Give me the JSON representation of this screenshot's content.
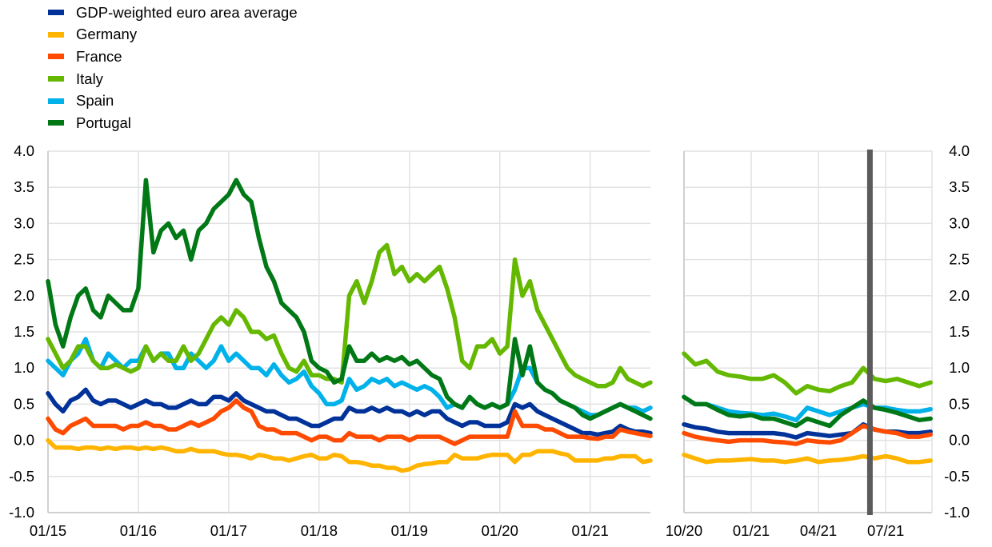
{
  "chart_data": [
    {
      "type": "line",
      "title": "",
      "xlabel": "",
      "ylabel": "",
      "ylim": [
        -1.0,
        4.0
      ],
      "yticks": [
        "4.0",
        "3.5",
        "3.0",
        "2.5",
        "2.0",
        "1.5",
        "1.0",
        "0.5",
        "0.0",
        "-0.5",
        "-1.0"
      ],
      "xticks": [
        {
          "date": "2015-01",
          "label": "01/15"
        },
        {
          "date": "2016-01",
          "label": "01/16"
        },
        {
          "date": "2017-01",
          "label": "01/17"
        },
        {
          "date": "2018-01",
          "label": "01/18"
        },
        {
          "date": "2019-01",
          "label": "01/19"
        },
        {
          "date": "2020-01",
          "label": "01/20"
        },
        {
          "date": "2021-01",
          "label": "01/21"
        }
      ],
      "xlim": [
        "2015-01",
        "2021-09"
      ],
      "grid": true,
      "y_axis_side": "left",
      "start": "2015-01",
      "step": "monthly",
      "series": [
        {
          "name": "Germany",
          "color": "#ffb400",
          "values": [
            0.0,
            -0.1,
            -0.1,
            -0.1,
            -0.12,
            -0.1,
            -0.1,
            -0.12,
            -0.1,
            -0.12,
            -0.1,
            -0.1,
            -0.12,
            -0.1,
            -0.12,
            -0.1,
            -0.12,
            -0.15,
            -0.15,
            -0.12,
            -0.15,
            -0.15,
            -0.15,
            -0.18,
            -0.2,
            -0.2,
            -0.22,
            -0.25,
            -0.2,
            -0.22,
            -0.25,
            -0.25,
            -0.28,
            -0.25,
            -0.22,
            -0.2,
            -0.25,
            -0.25,
            -0.2,
            -0.22,
            -0.3,
            -0.3,
            -0.32,
            -0.35,
            -0.35,
            -0.38,
            -0.38,
            -0.42,
            -0.4,
            -0.35,
            -0.33,
            -0.32,
            -0.3,
            -0.3,
            -0.2,
            -0.25,
            -0.25,
            -0.25,
            -0.22,
            -0.2,
            -0.2,
            -0.2,
            -0.3,
            -0.2,
            -0.2,
            -0.15,
            -0.15,
            -0.15,
            -0.18,
            -0.2,
            -0.28,
            -0.28,
            -0.28,
            -0.28,
            -0.25,
            -0.25,
            -0.22,
            -0.22,
            -0.22,
            -0.3,
            -0.28
          ]
        },
        {
          "name": "Spain",
          "color": "#00b1ea",
          "values": [
            1.1,
            1.0,
            0.9,
            1.1,
            1.2,
            1.4,
            1.1,
            1.0,
            1.2,
            1.1,
            1.0,
            1.1,
            1.1,
            1.3,
            1.1,
            1.2,
            1.2,
            1.0,
            1.0,
            1.2,
            1.1,
            1.0,
            1.1,
            1.3,
            1.1,
            1.2,
            1.1,
            1.0,
            1.0,
            0.9,
            1.05,
            0.9,
            0.8,
            0.85,
            0.95,
            0.75,
            0.65,
            0.5,
            0.5,
            0.55,
            0.85,
            0.7,
            0.75,
            0.85,
            0.8,
            0.85,
            0.75,
            0.8,
            0.75,
            0.7,
            0.75,
            0.7,
            0.6,
            0.45,
            0.5,
            0.45,
            0.6,
            0.5,
            0.45,
            0.5,
            0.45,
            0.5,
            0.7,
            1.0,
            1.0,
            0.8,
            0.7,
            0.65,
            0.55,
            0.5,
            0.45,
            0.4,
            0.35,
            0.35,
            0.4,
            0.45,
            0.5,
            0.45,
            0.45,
            0.4,
            0.45
          ]
        },
        {
          "name": "Italy",
          "color": "#65b800",
          "values": [
            1.4,
            1.2,
            1.0,
            1.1,
            1.3,
            1.3,
            1.1,
            1.0,
            1.0,
            1.05,
            1.0,
            0.95,
            1.0,
            1.3,
            1.1,
            1.2,
            1.1,
            1.1,
            1.3,
            1.1,
            1.2,
            1.4,
            1.6,
            1.7,
            1.6,
            1.8,
            1.7,
            1.5,
            1.5,
            1.4,
            1.45,
            1.2,
            1.0,
            0.95,
            1.1,
            0.9,
            0.9,
            0.85,
            0.85,
            0.8,
            2.0,
            2.2,
            1.9,
            2.2,
            2.6,
            2.7,
            2.3,
            2.4,
            2.2,
            2.3,
            2.2,
            2.3,
            2.4,
            2.1,
            1.7,
            1.1,
            1.0,
            1.3,
            1.3,
            1.4,
            1.2,
            1.3,
            2.5,
            2.0,
            2.2,
            1.8,
            1.6,
            1.4,
            1.2,
            1.0,
            0.9,
            0.85,
            0.8,
            0.75,
            0.75,
            0.8,
            1.0,
            0.85,
            0.8,
            0.75,
            0.8
          ]
        },
        {
          "name": "Portugal",
          "color": "#007816",
          "values": [
            2.2,
            1.6,
            1.3,
            1.7,
            2.0,
            2.1,
            1.8,
            1.7,
            2.0,
            1.9,
            1.8,
            1.8,
            2.1,
            3.6,
            2.6,
            2.9,
            3.0,
            2.8,
            2.9,
            2.5,
            2.9,
            3.0,
            3.2,
            3.3,
            3.4,
            3.6,
            3.4,
            3.3,
            2.8,
            2.4,
            2.2,
            1.9,
            1.8,
            1.7,
            1.5,
            1.1,
            1.0,
            0.95,
            0.8,
            0.85,
            1.3,
            1.1,
            1.1,
            1.2,
            1.1,
            1.15,
            1.1,
            1.15,
            1.05,
            1.1,
            1.0,
            0.9,
            0.85,
            0.6,
            0.5,
            0.45,
            0.6,
            0.5,
            0.45,
            0.5,
            0.45,
            0.5,
            1.4,
            0.9,
            1.3,
            0.8,
            0.7,
            0.65,
            0.55,
            0.5,
            0.45,
            0.35,
            0.3,
            0.35,
            0.4,
            0.45,
            0.5,
            0.45,
            0.4,
            0.35,
            0.3
          ]
        },
        {
          "name": "GDP-weighted euro area average",
          "color": "#003299",
          "values": [
            0.65,
            0.5,
            0.4,
            0.55,
            0.6,
            0.7,
            0.55,
            0.5,
            0.55,
            0.55,
            0.5,
            0.45,
            0.5,
            0.55,
            0.5,
            0.5,
            0.45,
            0.45,
            0.5,
            0.55,
            0.5,
            0.5,
            0.6,
            0.6,
            0.55,
            0.65,
            0.55,
            0.5,
            0.45,
            0.4,
            0.4,
            0.35,
            0.3,
            0.3,
            0.25,
            0.2,
            0.2,
            0.25,
            0.3,
            0.3,
            0.45,
            0.4,
            0.4,
            0.45,
            0.4,
            0.45,
            0.4,
            0.4,
            0.35,
            0.4,
            0.35,
            0.4,
            0.4,
            0.3,
            0.25,
            0.2,
            0.25,
            0.25,
            0.2,
            0.2,
            0.2,
            0.25,
            0.5,
            0.45,
            0.5,
            0.4,
            0.35,
            0.3,
            0.25,
            0.2,
            0.15,
            0.1,
            0.1,
            0.08,
            0.1,
            0.12,
            0.2,
            0.15,
            0.12,
            0.12,
            0.1
          ]
        },
        {
          "name": "France",
          "color": "#ff4b00",
          "values": [
            0.3,
            0.15,
            0.1,
            0.2,
            0.25,
            0.3,
            0.2,
            0.2,
            0.2,
            0.2,
            0.15,
            0.2,
            0.2,
            0.25,
            0.2,
            0.2,
            0.15,
            0.15,
            0.2,
            0.25,
            0.2,
            0.25,
            0.3,
            0.4,
            0.45,
            0.55,
            0.45,
            0.4,
            0.2,
            0.15,
            0.15,
            0.1,
            0.1,
            0.1,
            0.05,
            0.0,
            0.05,
            0.05,
            0.0,
            0.0,
            0.1,
            0.05,
            0.05,
            0.05,
            0.0,
            0.05,
            0.05,
            0.05,
            0.0,
            0.05,
            0.05,
            0.05,
            0.05,
            0.0,
            -0.05,
            0.0,
            0.05,
            0.05,
            0.05,
            0.05,
            0.05,
            0.05,
            0.4,
            0.2,
            0.2,
            0.2,
            0.15,
            0.15,
            0.1,
            0.05,
            0.05,
            0.05,
            0.03,
            0.02,
            0.05,
            0.05,
            0.15,
            0.12,
            0.1,
            0.08,
            0.06
          ]
        }
      ]
    },
    {
      "type": "line",
      "title": "",
      "xlabel": "",
      "ylabel": "",
      "ylim": [
        -1.0,
        4.0
      ],
      "yticks": [
        "4.0",
        "3.5",
        "3.0",
        "2.5",
        "2.0",
        "1.5",
        "1.0",
        "0.5",
        "0.0",
        "-0.5",
        "-1.0"
      ],
      "xticks": [
        {
          "date": "2020-10-01",
          "label": "10/20"
        },
        {
          "date": "2021-01-01",
          "label": "01/21"
        },
        {
          "date": "2021-04-01",
          "label": "04/21"
        },
        {
          "date": "2021-07-01",
          "label": "07/21"
        }
      ],
      "xlim": [
        "2020-10-01",
        "2021-09-03"
      ],
      "grid": true,
      "y_axis_side": "right",
      "start": "2020-10-01",
      "step": "semi-monthly",
      "vertical_marker": {
        "date": "2021-06-10",
        "color": "#5b5b5b"
      },
      "series": [
        {
          "name": "Germany",
          "color": "#ffb400",
          "values": [
            -0.2,
            -0.25,
            -0.3,
            -0.28,
            -0.28,
            -0.27,
            -0.26,
            -0.28,
            -0.28,
            -0.3,
            -0.28,
            -0.25,
            -0.3,
            -0.28,
            -0.27,
            -0.25,
            -0.22,
            -0.25,
            -0.22,
            -0.25,
            -0.3,
            -0.3,
            -0.28
          ]
        },
        {
          "name": "Spain",
          "color": "#00b1ea",
          "values": [
            0.6,
            0.5,
            0.5,
            0.45,
            0.4,
            0.38,
            0.37,
            0.35,
            0.37,
            0.33,
            0.28,
            0.45,
            0.4,
            0.35,
            0.4,
            0.45,
            0.5,
            0.45,
            0.45,
            0.42,
            0.4,
            0.4,
            0.43
          ]
        },
        {
          "name": "Italy",
          "color": "#65b800",
          "values": [
            1.2,
            1.05,
            1.1,
            0.95,
            0.9,
            0.88,
            0.85,
            0.85,
            0.9,
            0.8,
            0.65,
            0.75,
            0.7,
            0.68,
            0.75,
            0.8,
            1.0,
            0.85,
            0.82,
            0.85,
            0.8,
            0.75,
            0.8
          ]
        },
        {
          "name": "Portugal",
          "color": "#007816",
          "values": [
            0.6,
            0.5,
            0.5,
            0.42,
            0.35,
            0.33,
            0.35,
            0.3,
            0.3,
            0.25,
            0.2,
            0.3,
            0.25,
            0.2,
            0.35,
            0.45,
            0.55,
            0.45,
            0.42,
            0.38,
            0.33,
            0.28,
            0.3
          ]
        },
        {
          "name": "GDP-weighted euro area average",
          "color": "#003299",
          "values": [
            0.22,
            0.18,
            0.16,
            0.12,
            0.1,
            0.1,
            0.1,
            0.1,
            0.1,
            0.08,
            0.04,
            0.1,
            0.08,
            0.06,
            0.08,
            0.1,
            0.22,
            0.15,
            0.12,
            0.12,
            0.1,
            0.1,
            0.12
          ]
        },
        {
          "name": "France",
          "color": "#ff4b00",
          "values": [
            0.1,
            0.05,
            0.02,
            0.0,
            -0.02,
            0.0,
            0.0,
            0.0,
            -0.02,
            -0.03,
            -0.05,
            0.0,
            -0.02,
            -0.03,
            0.0,
            0.1,
            0.2,
            0.15,
            0.12,
            0.1,
            0.05,
            0.05,
            0.08
          ]
        }
      ]
    }
  ],
  "legend": {
    "placement": "top-left",
    "items": [
      {
        "label": "GDP-weighted euro area average",
        "color": "#003299"
      },
      {
        "label": "Germany",
        "color": "#ffb400"
      },
      {
        "label": "France",
        "color": "#ff4b00"
      },
      {
        "label": "Italy",
        "color": "#65b800"
      },
      {
        "label": "Spain",
        "color": "#00b1ea"
      },
      {
        "label": "Portugal",
        "color": "#007816"
      }
    ]
  }
}
